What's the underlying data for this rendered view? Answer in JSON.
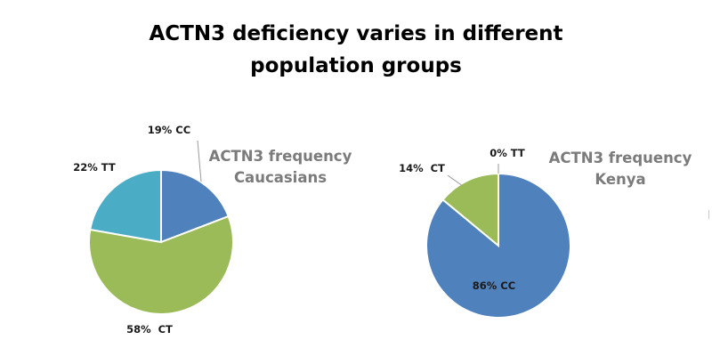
{
  "page": {
    "title_line1": "ACTN3 deficiency varies in different",
    "title_line2": "population groups"
  },
  "chart_data": [
    {
      "type": "pie",
      "title": "ACTN3 frequency\nCaucasians",
      "slices": [
        {
          "label": "CC",
          "value": 19,
          "display": "19% CC",
          "color": "#4f81bd"
        },
        {
          "label": "CT",
          "value": 58,
          "display": "58%  CT",
          "color": "#9bbb59"
        },
        {
          "label": "TT",
          "value": 22,
          "display": "22% TT",
          "color": "#4bacc6"
        }
      ]
    },
    {
      "type": "pie",
      "title": "ACTN3 frequency\nKenya",
      "slices": [
        {
          "label": "CC",
          "value": 86,
          "display": "86% CC",
          "color": "#4f81bd"
        },
        {
          "label": "CT",
          "value": 14,
          "display": "14%  CT",
          "color": "#9bbb59"
        },
        {
          "label": "TT",
          "value": 0,
          "display": "0% TT",
          "color": "#4bacc6"
        }
      ]
    }
  ]
}
